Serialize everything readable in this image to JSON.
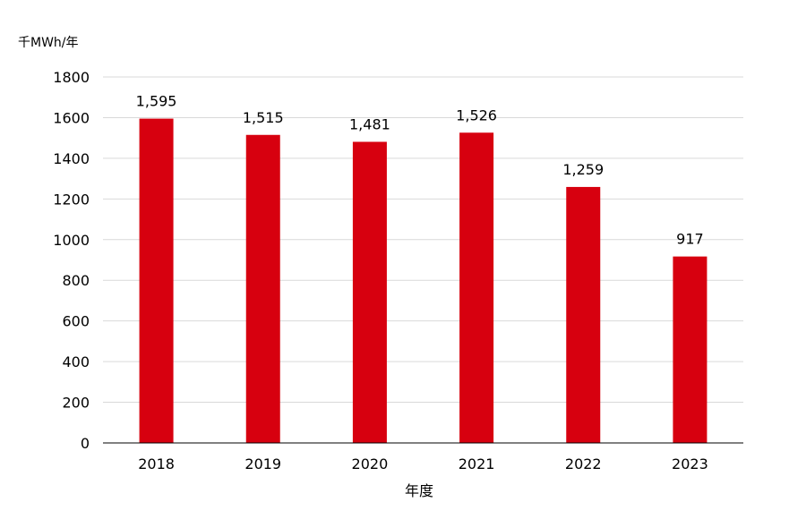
{
  "chart_data": {
    "type": "bar",
    "categories": [
      "2018",
      "2019",
      "2020",
      "2021",
      "2022",
      "2023"
    ],
    "values": [
      1595,
      1515,
      1481,
      1526,
      1259,
      917
    ],
    "data_labels": [
      "1,595",
      "1,515",
      "1,481",
      "1,526",
      "1,259",
      "917"
    ],
    "y_unit_label": "千MWh/年",
    "xlabel": "年度",
    "ylabel": "",
    "title": "",
    "ylim": [
      0,
      1800
    ],
    "y_ticks": [
      "0",
      "200",
      "400",
      "600",
      "800",
      "1000",
      "1200",
      "1400",
      "1600",
      "1800"
    ],
    "y_tick_values": [
      0,
      200,
      400,
      600,
      800,
      1000,
      1200,
      1400,
      1600,
      1800
    ],
    "grid": true,
    "bar_color": "#d7000f"
  }
}
